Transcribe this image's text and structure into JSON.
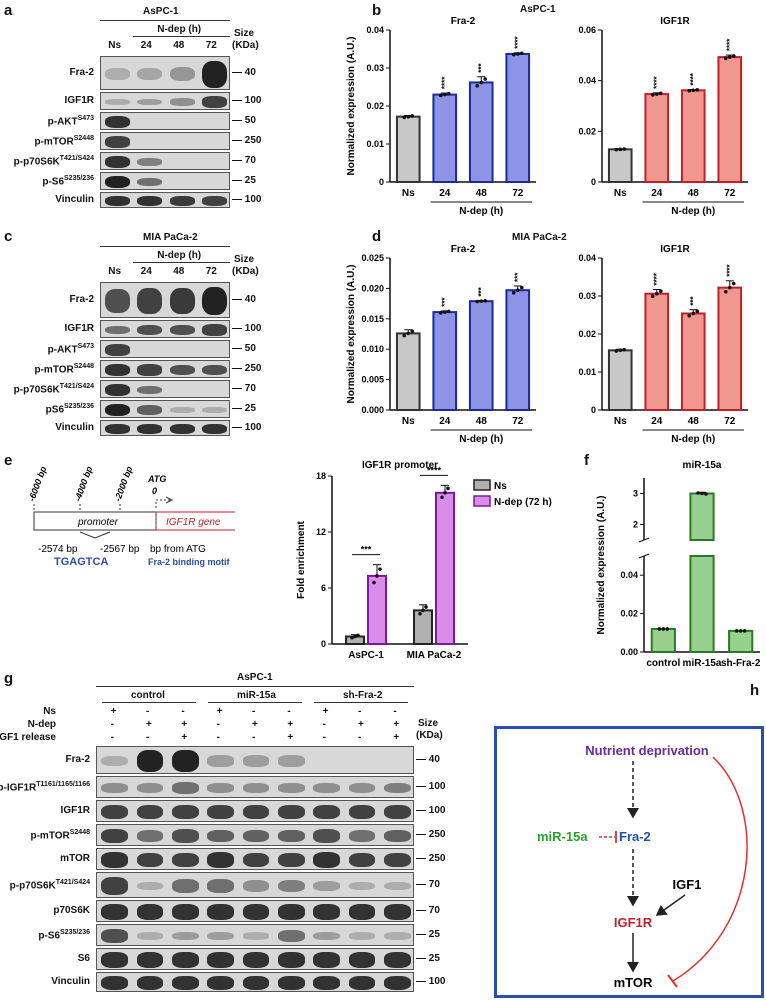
{
  "labels": {
    "a": "a",
    "b": "b",
    "c": "c",
    "d": "d",
    "e": "e",
    "f": "f",
    "g": "g",
    "h": "h"
  },
  "panel_a": {
    "cell_line": "AsPC-1",
    "treat_label": "N-dep (h)",
    "lanes": [
      "Ns",
      "24",
      "48",
      "72"
    ],
    "size_header": [
      "Size",
      "(KDa)"
    ],
    "rows": [
      {
        "name": "Fra-2",
        "mw": "40",
        "bands": [
          0.1,
          0.15,
          0.25,
          1.0
        ]
      },
      {
        "name": "IGF1R",
        "mw": "100",
        "bands": [
          0.1,
          0.2,
          0.3,
          0.8
        ]
      },
      {
        "name": "p-AKT",
        "sup": "S473",
        "mw": "50",
        "bands": [
          0.9,
          0,
          0,
          0
        ]
      },
      {
        "name": "p-mTOR",
        "sup": "S2448",
        "mw": "250",
        "bands": [
          0.8,
          0,
          0,
          0
        ]
      },
      {
        "name": "p-p70S6K",
        "sup": "T421/S424",
        "mw": "70",
        "bands": [
          0.9,
          0.4,
          0,
          0
        ]
      },
      {
        "name": "p-S6",
        "sup": "S235/236",
        "mw": "25",
        "bands": [
          1.0,
          0.5,
          0,
          0
        ]
      },
      {
        "name": "Vinculin",
        "mw": "100",
        "bands": [
          0.9,
          0.9,
          0.85,
          0.8
        ]
      }
    ]
  },
  "panel_c": {
    "cell_line": "MIA PaCa-2",
    "treat_label": "N-dep (h)",
    "lanes": [
      "Ns",
      "24",
      "48",
      "72"
    ],
    "size_header": [
      "Size",
      "(KDa)"
    ],
    "rows": [
      {
        "name": "Fra-2",
        "mw": "40",
        "bands": [
          0.7,
          0.8,
          0.85,
          1.0
        ]
      },
      {
        "name": "IGF1R",
        "mw": "100",
        "bands": [
          0.5,
          0.7,
          0.7,
          0.8
        ]
      },
      {
        "name": "p-AKT",
        "sup": "S473",
        "mw": "50",
        "bands": [
          0.8,
          0,
          0,
          0
        ]
      },
      {
        "name": "p-mTOR",
        "sup": "S2448",
        "mw": "250",
        "bands": [
          0.9,
          0.8,
          0.7,
          0.7
        ]
      },
      {
        "name": "p-p70S6K",
        "sup": "T421/S424",
        "mw": "70",
        "bands": [
          0.9,
          0.5,
          0,
          0
        ]
      },
      {
        "name": "pS6",
        "sup": "S235/236",
        "mw": "25",
        "bands": [
          1.0,
          0.6,
          0.1,
          0.1
        ]
      },
      {
        "name": "Vinculin",
        "mw": "100",
        "bands": [
          0.9,
          0.9,
          0.9,
          0.9
        ]
      }
    ]
  },
  "panel_g": {
    "cell_line": "AsPC-1",
    "groups": [
      "control",
      "miR-15a",
      "sh-Fra-2"
    ],
    "cond_rows": [
      {
        "name": "Ns",
        "signs": [
          "+",
          "-",
          "-",
          "+",
          "-",
          "-",
          "+",
          "-",
          "-"
        ]
      },
      {
        "name": "N-dep",
        "signs": [
          "-",
          "+",
          "+",
          "-",
          "+",
          "+",
          "-",
          "+",
          "+"
        ]
      },
      {
        "name": "IGF1 release",
        "signs": [
          "-",
          "-",
          "+",
          "-",
          "-",
          "+",
          "-",
          "-",
          "+"
        ]
      }
    ],
    "size_header": [
      "Size",
      "(KDa)"
    ],
    "rows": [
      {
        "name": "Fra-2",
        "mw": "40",
        "bands": [
          0.1,
          1,
          1,
          0.2,
          0.2,
          0.2,
          0,
          0,
          0
        ]
      },
      {
        "name": "p-IGF1R",
        "sup": "T1161/1165/1166",
        "mw": "100",
        "bands": [
          0.3,
          0.3,
          0.5,
          0.3,
          0.3,
          0.3,
          0.3,
          0.3,
          0.4
        ]
      },
      {
        "name": "IGF1R",
        "mw": "100",
        "bands": [
          0.8,
          0.8,
          0.8,
          0.8,
          0.8,
          0.8,
          0.8,
          0.8,
          0.8
        ]
      },
      {
        "name": "p-mTOR",
        "sup": "S2448",
        "mw": "250",
        "bands": [
          0.8,
          0.5,
          0.7,
          0.6,
          0.6,
          0.6,
          0.7,
          0.5,
          0.6
        ]
      },
      {
        "name": "mTOR",
        "mw": "250",
        "bands": [
          0.9,
          0.8,
          0.8,
          0.9,
          0.8,
          0.8,
          0.9,
          0.8,
          0.8
        ]
      },
      {
        "name": "p-p70S6K",
        "sup": "T421/S424",
        "mw": "70",
        "bands": [
          0.8,
          0.1,
          0.5,
          0.5,
          0.3,
          0.4,
          0.2,
          0.1,
          0.1
        ]
      },
      {
        "name": "p70S6K",
        "mw": "70",
        "bands": [
          0.9,
          0.9,
          0.9,
          0.9,
          0.9,
          0.9,
          0.9,
          0.9,
          0.9
        ]
      },
      {
        "name": "p-S6",
        "sup": "S235/236",
        "mw": "25",
        "bands": [
          0.7,
          0.1,
          0.2,
          0.2,
          0.1,
          0.5,
          0.2,
          0.1,
          0.1
        ]
      },
      {
        "name": "S6",
        "mw": "25",
        "bands": [
          0.9,
          0.9,
          0.9,
          0.9,
          0.9,
          0.9,
          0.9,
          0.9,
          0.9
        ]
      },
      {
        "name": "Vinculin",
        "mw": "100",
        "bands": [
          0.9,
          0.9,
          0.9,
          0.9,
          0.9,
          0.9,
          0.9,
          0.9,
          0.9
        ]
      }
    ]
  },
  "panel_e": {
    "scale": [
      "-6000 bp",
      "-4000 bp",
      "-2000 bp",
      "ATG",
      "0"
    ],
    "promoter": "promoter",
    "gene": "IGF1R gene",
    "site_from": "-2574 bp",
    "site_to": "-2567 bp",
    "from_atg": "bp from ATG",
    "motif": "TGAGTCA",
    "motif_label": "Fra-2 binding motif"
  },
  "panel_h": {
    "nodes": {
      "nutrient": "Nutrient deprivation",
      "mir": "miR-15a",
      "fra2": "Fra-2",
      "igf1": "IGF1",
      "igf1r": "IGF1R",
      "mtor": "mTOR"
    },
    "colors": {
      "nutrient": "#6a2a9a",
      "mir": "#2ca02c",
      "fra2": "#1f4fa8",
      "igf1r": "#c0202a",
      "inhibit": "#e03030"
    }
  },
  "chart_data": [
    {
      "id": "b-fra2",
      "type": "bar",
      "title": "AsPC-1 Fra-2",
      "panel_title": "Fra-2",
      "figure_title": "AsPC-1",
      "categories": [
        "Ns",
        "24",
        "48",
        "72"
      ],
      "values": [
        0.0172,
        0.023,
        0.0262,
        0.0337
      ],
      "errors": [
        0.0003,
        0.0004,
        0.0015,
        0.0003
      ],
      "sig": [
        "",
        "****",
        "***",
        "****"
      ],
      "ylabel": "Normalized expression (A.U.)",
      "xgroup": "N-dep (h)",
      "ylim": [
        0,
        0.04
      ],
      "yticks": [
        "0",
        "0.01",
        "0.02",
        "0.03",
        "0.04"
      ],
      "colors": [
        "#c8c8c8",
        "#8d94e6",
        "#8d94e6",
        "#8d94e6"
      ],
      "edges": [
        "#333",
        "#1a2a99",
        "#1a2a99",
        "#1a2a99"
      ]
    },
    {
      "id": "b-igf1r",
      "type": "bar",
      "title": "AsPC-1 IGF1R",
      "panel_title": "IGF1R",
      "categories": [
        "Ns",
        "24",
        "48",
        "72"
      ],
      "values": [
        0.0129,
        0.0347,
        0.0362,
        0.0493
      ],
      "errors": [
        0.0002,
        0.0005,
        0.0003,
        0.0008
      ],
      "sig": [
        "",
        "****",
        "****",
        "****"
      ],
      "ylabel": "",
      "xgroup": "N-dep (h)",
      "ylim": [
        0,
        0.06
      ],
      "yticks": [
        "0",
        "0.02",
        "0.04",
        "0.06"
      ],
      "colors": [
        "#c8c8c8",
        "#f09890",
        "#f09890",
        "#f09890"
      ],
      "edges": [
        "#333",
        "#c0202a",
        "#c0202a",
        "#c0202a"
      ]
    },
    {
      "id": "d-fra2",
      "type": "bar",
      "title": "MIA PaCa-2 Fra-2",
      "panel_title": "Fra-2",
      "figure_title": "MIA PaCa-2",
      "categories": [
        "Ns",
        "24",
        "48",
        "72"
      ],
      "values": [
        0.0126,
        0.0161,
        0.0179,
        0.0197
      ],
      "errors": [
        0.0006,
        0.0002,
        0.0001,
        0.0007
      ],
      "sig": [
        "",
        "***",
        "***",
        "***"
      ],
      "ylabel": "Normalized expression (A.U.)",
      "xgroup": "N-dep (h)",
      "ylim": [
        0,
        0.025
      ],
      "yticks": [
        "0.000",
        "0.005",
        "0.010",
        "0.015",
        "0.020",
        "0.025"
      ],
      "colors": [
        "#c8c8c8",
        "#8d94e6",
        "#8d94e6",
        "#8d94e6"
      ],
      "edges": [
        "#333",
        "#1a2a99",
        "#1a2a99",
        "#1a2a99"
      ]
    },
    {
      "id": "d-igf1r",
      "type": "bar",
      "title": "MIA PaCa-2 IGF1R",
      "panel_title": "IGF1R",
      "categories": [
        "Ns",
        "24",
        "48",
        "72"
      ],
      "values": [
        0.0157,
        0.0306,
        0.0254,
        0.0322
      ],
      "errors": [
        0.0003,
        0.0011,
        0.001,
        0.0018
      ],
      "sig": [
        "",
        "****",
        "***",
        "****"
      ],
      "ylabel": "",
      "xgroup": "N-dep (h)",
      "ylim": [
        0,
        0.04
      ],
      "yticks": [
        "0",
        "0.01",
        "0.02",
        "0.03",
        "0.04"
      ],
      "colors": [
        "#c8c8c8",
        "#f09890",
        "#f09890",
        "#f09890"
      ],
      "edges": [
        "#333",
        "#c0202a",
        "#c0202a",
        "#c0202a"
      ]
    },
    {
      "id": "e-chip",
      "type": "bar",
      "title": "IGF1R promoter",
      "categories": [
        "AsPC-1",
        "MIA PaCa-2"
      ],
      "series": [
        {
          "name": "Ns",
          "values": [
            0.8,
            3.6
          ],
          "errors": [
            0.2,
            0.6
          ],
          "color": "#b0b0b0",
          "edge": "#222"
        },
        {
          "name": "N-dep (72 h)",
          "values": [
            7.3,
            16.2
          ],
          "errors": [
            1.2,
            0.8
          ],
          "color": "#d98ce8",
          "edge": "#7a1a9a"
        }
      ],
      "sig": [
        "***",
        "****"
      ],
      "ylabel": "Fold enrichment",
      "ylim": [
        0,
        18
      ],
      "yticks": [
        "0",
        "6",
        "12",
        "18"
      ]
    },
    {
      "id": "f-mir",
      "type": "bar",
      "title": "miR-15a",
      "categories": [
        "control",
        "miR-15a",
        "sh-Fra-2"
      ],
      "values": [
        0.012,
        3.0,
        0.011
      ],
      "errors": [
        0.0005,
        0.04,
        0.0004
      ],
      "ylabel": "Normalized expression (A.U.)",
      "yticks_low": [
        "0.00",
        "0.02",
        "0.04"
      ],
      "yticks_high": [
        "2",
        "3"
      ],
      "broken_axis": true,
      "colors": [
        "#98d090",
        "#98d090",
        "#98d090"
      ],
      "edges": [
        "#2a7a2a",
        "#2a7a2a",
        "#2a7a2a"
      ]
    }
  ]
}
